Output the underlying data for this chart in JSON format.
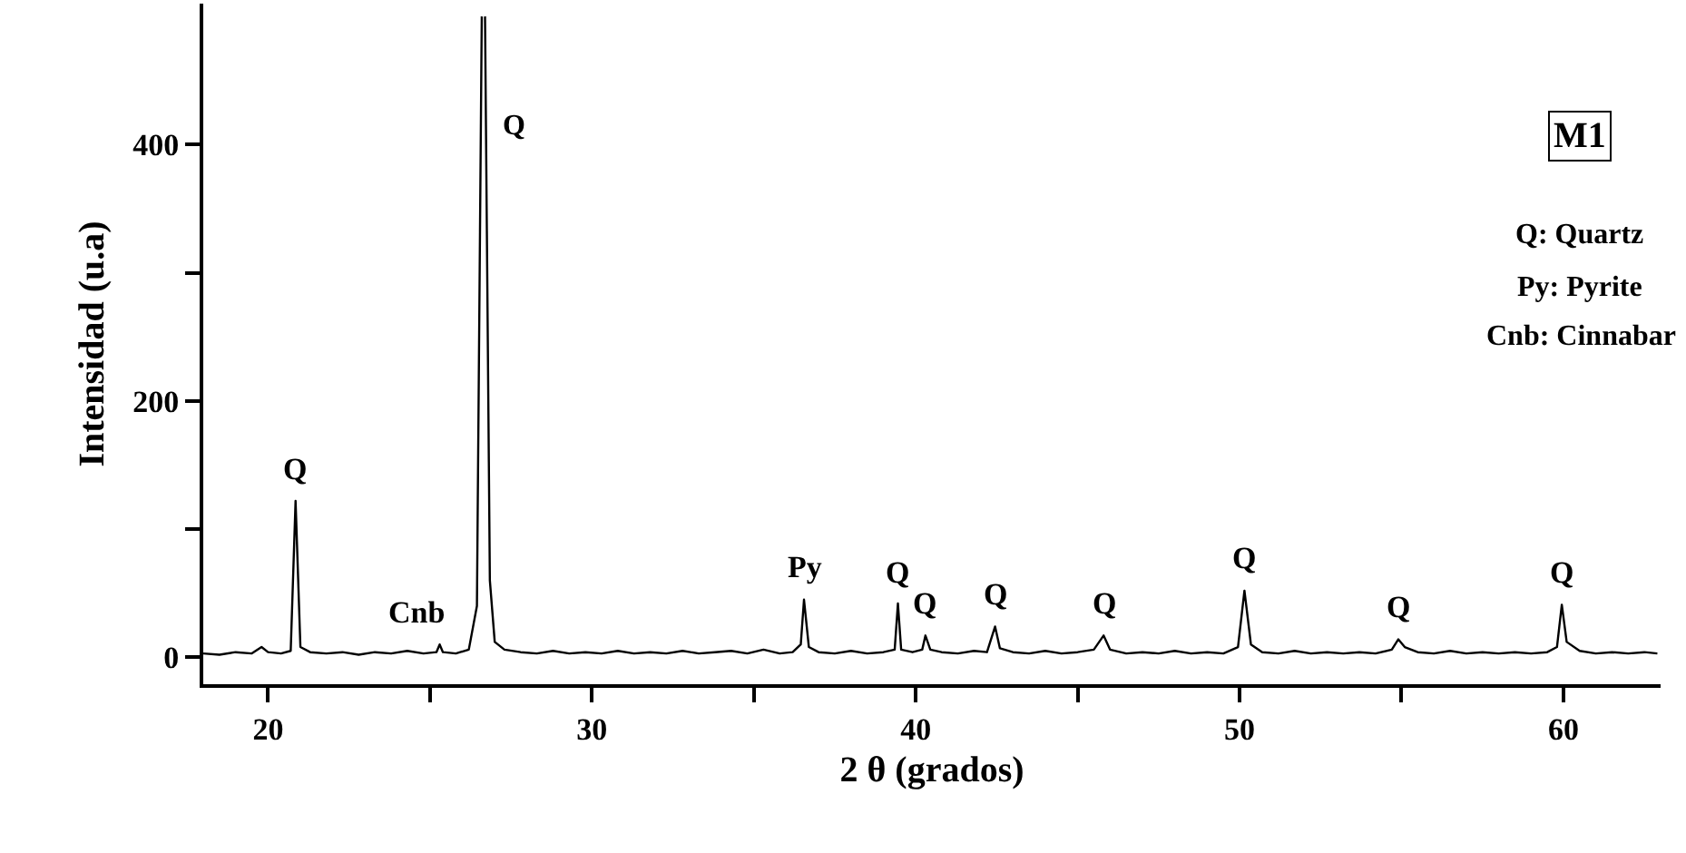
{
  "chart_data": {
    "type": "line",
    "xlabel": "2 θ (grados)",
    "ylabel": "Intensidad (u.a)",
    "x": [
      18.0,
      18.5,
      19.0,
      19.5,
      19.8,
      20.0,
      20.4,
      20.7,
      20.85,
      21.0,
      21.3,
      21.8,
      22.3,
      22.8,
      23.3,
      23.8,
      24.3,
      24.8,
      25.2,
      25.3,
      25.4,
      25.8,
      26.2,
      26.45,
      26.6,
      26.65,
      26.7,
      26.85,
      27.0,
      27.3,
      27.8,
      28.3,
      28.8,
      29.3,
      29.8,
      30.3,
      30.8,
      31.3,
      31.8,
      32.3,
      32.8,
      33.3,
      33.8,
      34.3,
      34.8,
      35.3,
      35.8,
      36.2,
      36.45,
      36.55,
      36.7,
      37.0,
      37.5,
      38.0,
      38.5,
      39.0,
      39.35,
      39.45,
      39.55,
      39.9,
      40.2,
      40.3,
      40.45,
      40.8,
      41.3,
      41.8,
      42.2,
      42.45,
      42.6,
      43.0,
      43.5,
      44.0,
      44.5,
      45.0,
      45.5,
      45.8,
      46.0,
      46.5,
      47.0,
      47.5,
      48.0,
      48.5,
      49.0,
      49.5,
      49.95,
      50.15,
      50.35,
      50.7,
      51.2,
      51.7,
      52.2,
      52.7,
      53.2,
      53.7,
      54.2,
      54.7,
      54.9,
      55.1,
      55.5,
      56.0,
      56.5,
      57.0,
      57.5,
      58.0,
      58.5,
      59.0,
      59.5,
      59.8,
      59.95,
      60.1,
      60.5,
      61.0,
      61.5,
      62.0,
      62.5,
      62.9
    ],
    "series": [
      {
        "color": "#000000",
        "values": [
          3,
          2,
          4,
          3,
          8,
          4,
          3,
          5,
          122,
          8,
          4,
          3,
          4,
          2,
          4,
          3,
          5,
          3,
          4,
          10,
          4,
          3,
          6,
          40,
          500,
          null,
          500,
          60,
          12,
          6,
          4,
          3,
          5,
          3,
          4,
          3,
          5,
          3,
          4,
          3,
          5,
          3,
          4,
          5,
          3,
          6,
          3,
          4,
          10,
          45,
          8,
          4,
          3,
          5,
          3,
          4,
          6,
          42,
          6,
          4,
          6,
          17,
          6,
          4,
          3,
          5,
          4,
          24,
          7,
          4,
          3,
          5,
          3,
          4,
          6,
          17,
          6,
          3,
          4,
          3,
          5,
          3,
          4,
          3,
          8,
          52,
          10,
          4,
          3,
          5,
          3,
          4,
          3,
          4,
          3,
          6,
          14,
          8,
          4,
          3,
          5,
          3,
          4,
          3,
          4,
          3,
          4,
          8,
          41,
          12,
          5,
          3,
          4,
          3,
          4,
          3
        ]
      }
    ],
    "xlim": [
      18.0,
      63.0
    ],
    "ylim": [
      -21,
      510
    ],
    "xticks": [
      20,
      {
        "value": 25,
        "label": null
      },
      30,
      {
        "value": 35,
        "label": null
      },
      40,
      {
        "value": 45,
        "label": null
      },
      50,
      {
        "value": 55,
        "label": null
      },
      60
    ],
    "yticks": [
      0,
      {
        "value": 100,
        "label": null
      },
      200,
      {
        "value": 300,
        "label": null
      },
      400
    ],
    "marker": "none",
    "line_style": "solid",
    "annotations": [
      {
        "text": "Q",
        "x": 20.85,
        "y": 122
      },
      {
        "text": "Cnb",
        "x": 24.6,
        "y": 10
      },
      {
        "text": "Py",
        "x": 36.55,
        "y": 45
      },
      {
        "text": "Q",
        "x": 39.45,
        "y": 42
      },
      {
        "text": "Q",
        "x": 40.3,
        "y": 17
      },
      {
        "text": "Q",
        "x": 42.45,
        "y": 24
      },
      {
        "text": "Q",
        "x": 45.8,
        "y": 17
      },
      {
        "text": "Q",
        "x": 50.15,
        "y": 52
      },
      {
        "text": "Q",
        "x": 54.9,
        "y": 14
      },
      {
        "text": "Q",
        "x": 59.95,
        "y": 41
      },
      "Q",
      "M1",
      "Q: Quartz",
      "Py: Pyrite",
      "Cnb: Cinnabar"
    ]
  }
}
